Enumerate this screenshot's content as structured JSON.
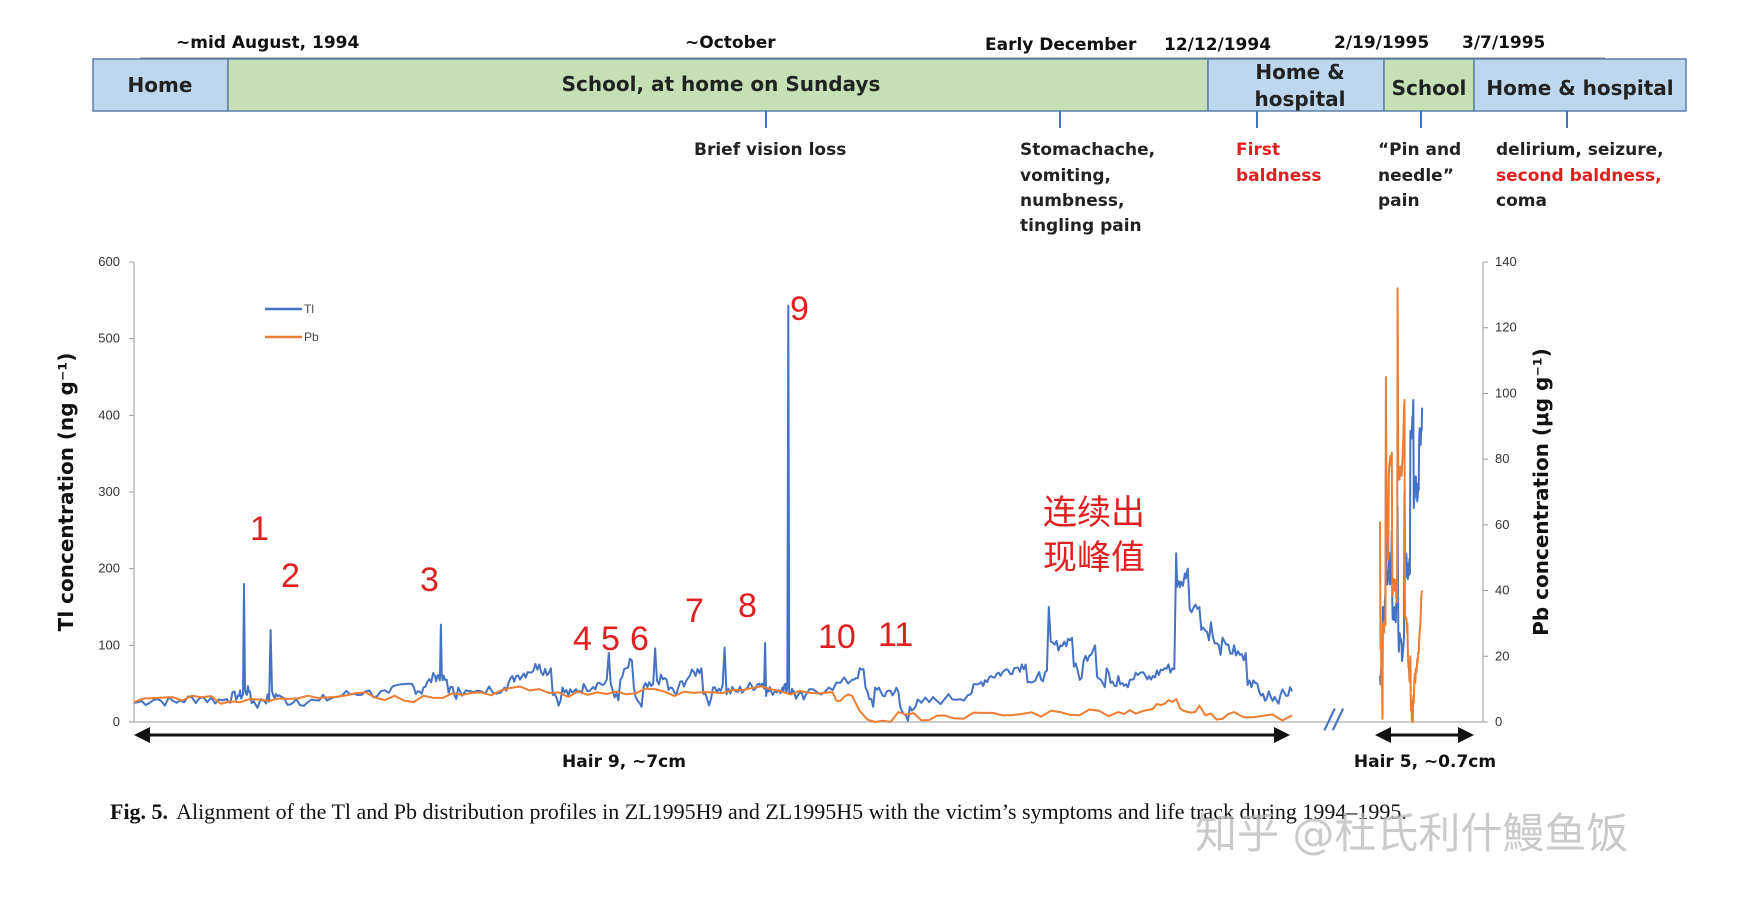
{
  "timeline": {
    "dates": [
      "~mid August, 1994",
      "~October",
      "Early December",
      "12/12/1994",
      "2/19/1995",
      "3/7/1995"
    ],
    "phases": [
      {
        "label_lines": [
          "Home"
        ],
        "color": "#bdd7ee"
      },
      {
        "label_lines": [
          "School, at home on Sundays"
        ],
        "color": "#c5e0b4"
      },
      {
        "label_lines": [
          "Home &",
          "hospital"
        ],
        "color": "#bdd7ee"
      },
      {
        "label_lines": [
          "School"
        ],
        "color": "#c5e0b4"
      },
      {
        "label_lines": [
          "Home & hospital"
        ],
        "color": "#bdd7ee"
      }
    ],
    "events": [
      {
        "lines": [
          {
            "t": "Brief vision loss",
            "red": false
          }
        ]
      },
      {
        "lines": [
          {
            "t": "Stomachache,",
            "red": false
          },
          {
            "t": "vomiting,",
            "red": false
          },
          {
            "t": "numbness,",
            "red": false
          },
          {
            "t": "tingling pain",
            "red": false
          }
        ]
      },
      {
        "lines": [
          {
            "t": "First",
            "red": true
          },
          {
            "t": "baldness",
            "red": true
          }
        ]
      },
      {
        "lines": [
          {
            "t": "“Pin and",
            "red": false
          },
          {
            "t": "needle”",
            "red": false
          },
          {
            "t": "pain",
            "red": false
          }
        ]
      },
      {
        "lines": [
          {
            "t": "delirium, seizure,",
            "red": false
          },
          {
            "t": "second baldness,",
            "red": true
          },
          {
            "t": "coma",
            "red": false
          }
        ]
      }
    ]
  },
  "chart_data": {
    "type": "line",
    "ylabel_left": "Tl concentration (ng g⁻¹)",
    "ylabel_right": "Pb concentration (μg g⁻¹)",
    "y_left_ticks": [
      "0",
      "100",
      "200",
      "300",
      "400",
      "500",
      "600"
    ],
    "y_right_ticks": [
      "0",
      "20",
      "40",
      "60",
      "80",
      "100",
      "120",
      "140"
    ],
    "ylim_left": [
      0,
      600
    ],
    "ylim_right": [
      0,
      140
    ],
    "x_units": "relative position along hair segment (0 = start of Hair 9, 1 = end of Hair 5)",
    "legend": [
      {
        "name": "Tl",
        "color": "#4472c4"
      },
      {
        "name": "Pb",
        "color": "#ed7d31"
      }
    ],
    "series": [
      {
        "name": "Tl",
        "axis": "left",
        "color": "#4472c4",
        "segments": [
          [
            [
              0.0,
              25
            ],
            [
              0.02,
              30
            ],
            [
              0.04,
              28
            ],
            [
              0.06,
              32
            ],
            [
              0.08,
              30
            ],
            [
              0.09,
              35
            ],
            [
              0.095,
              180
            ],
            [
              0.1,
              40
            ],
            [
              0.11,
              30
            ],
            [
              0.118,
              120
            ],
            [
              0.125,
              35
            ],
            [
              0.14,
              30
            ],
            [
              0.16,
              28
            ],
            [
              0.18,
              35
            ],
            [
              0.2,
              40
            ],
            [
              0.22,
              38
            ],
            [
              0.24,
              50
            ],
            [
              0.25,
              45
            ],
            [
              0.26,
              60
            ],
            [
              0.265,
              127
            ],
            [
              0.27,
              55
            ],
            [
              0.28,
              45
            ],
            [
              0.3,
              40
            ],
            [
              0.32,
              45
            ],
            [
              0.33,
              60
            ],
            [
              0.34,
              65
            ],
            [
              0.35,
              75
            ],
            [
              0.36,
              70
            ],
            [
              0.37,
              45
            ],
            [
              0.38,
              40
            ],
            [
              0.39,
              45
            ],
            [
              0.4,
              50
            ],
            [
              0.41,
              90
            ],
            [
              0.42,
              55
            ],
            [
              0.43,
              80
            ],
            [
              0.44,
              45
            ],
            [
              0.45,
              96
            ],
            [
              0.46,
              55
            ],
            [
              0.47,
              45
            ],
            [
              0.48,
              60
            ],
            [
              0.49,
              70
            ],
            [
              0.5,
              45
            ],
            [
              0.51,
              97
            ],
            [
              0.52,
              40
            ],
            [
              0.53,
              45
            ],
            [
              0.54,
              50
            ],
            [
              0.545,
              103
            ],
            [
              0.55,
              40
            ],
            [
              0.56,
              45
            ],
            [
              0.565,
              543
            ],
            [
              0.57,
              40
            ],
            [
              0.58,
              35
            ],
            [
              0.6,
              45
            ],
            [
              0.62,
              55
            ],
            [
              0.63,
              69
            ],
            [
              0.64,
              45
            ],
            [
              0.65,
              40
            ],
            [
              0.66,
              40
            ],
            [
              0.67,
              20
            ],
            [
              0.68,
              25
            ],
            [
              0.7,
              30
            ],
            [
              0.72,
              35
            ],
            [
              0.73,
              50
            ],
            [
              0.74,
              60
            ],
            [
              0.75,
              65
            ],
            [
              0.76,
              70
            ],
            [
              0.77,
              75
            ],
            [
              0.78,
              60
            ],
            [
              0.79,
              150
            ],
            [
              0.8,
              100
            ],
            [
              0.81,
              110
            ],
            [
              0.82,
              80
            ],
            [
              0.83,
              100
            ],
            [
              0.84,
              70
            ],
            [
              0.85,
              60
            ],
            [
              0.86,
              55
            ],
            [
              0.87,
              65
            ],
            [
              0.88,
              60
            ],
            [
              0.89,
              70
            ],
            [
              0.9,
              220
            ],
            [
              0.905,
              180
            ],
            [
              0.91,
              200
            ],
            [
              0.92,
              150
            ],
            [
              0.93,
              130
            ],
            [
              0.94,
              110
            ],
            [
              0.95,
              100
            ],
            [
              0.96,
              90
            ],
            [
              0.97,
              50
            ],
            [
              0.98,
              40
            ],
            [
              0.99,
              35
            ],
            [
              1.0,
              40
            ]
          ],
          [
            [
              0.0,
              60
            ],
            [
              0.03,
              150
            ],
            [
              0.06,
              330
            ],
            [
              0.09,
              200
            ],
            [
              0.12,
              250
            ],
            [
              0.15,
              150
            ],
            [
              0.18,
              280
            ],
            [
              0.22,
              100
            ],
            [
              0.25,
              300
            ],
            [
              0.28,
              200
            ],
            [
              0.31,
              380
            ],
            [
              0.34,
              420
            ],
            [
              0.37,
              300
            ],
            [
              0.4,
              370
            ],
            [
              0.43,
              410
            ]
          ]
        ]
      },
      {
        "name": "Pb",
        "axis": "right",
        "color": "#ed7d31",
        "segments": [
          [
            [
              0.0,
              6
            ],
            [
              0.05,
              8
            ],
            [
              0.1,
              7
            ],
            [
              0.15,
              8
            ],
            [
              0.2,
              9
            ],
            [
              0.25,
              8
            ],
            [
              0.3,
              9
            ],
            [
              0.35,
              10
            ],
            [
              0.4,
              9
            ],
            [
              0.45,
              10
            ],
            [
              0.5,
              9
            ],
            [
              0.55,
              10
            ],
            [
              0.6,
              9
            ],
            [
              0.62,
              8
            ],
            [
              0.66,
              3
            ],
            [
              0.7,
              2
            ],
            [
              0.75,
              2
            ],
            [
              0.8,
              3
            ],
            [
              0.85,
              3
            ],
            [
              0.88,
              4
            ],
            [
              0.9,
              7
            ],
            [
              0.92,
              5
            ],
            [
              0.95,
              3
            ],
            [
              1.0,
              2
            ]
          ],
          [
            [
              0.0,
              61
            ],
            [
              0.03,
              30
            ],
            [
              0.06,
              105
            ],
            [
              0.09,
              75
            ],
            [
              0.12,
              82
            ],
            [
              0.15,
              40
            ],
            [
              0.18,
              132
            ],
            [
              0.22,
              75
            ],
            [
              0.25,
              98
            ],
            [
              0.28,
              30
            ],
            [
              0.31,
              20
            ],
            [
              0.34,
              8
            ],
            [
              0.37,
              15
            ],
            [
              0.4,
              25
            ],
            [
              0.43,
              40
            ]
          ]
        ]
      }
    ],
    "peak_labels": [
      "1",
      "2",
      "3",
      "4",
      "5",
      "6",
      "7",
      "8",
      "9",
      "10",
      "11"
    ],
    "annotation_lines": [
      "连续出",
      "现峰值"
    ],
    "hair_labels": [
      "Hair 9, ~7cm",
      "Hair 5, ~0.7cm"
    ],
    "break_mark": "//"
  },
  "caption": {
    "fig": "Fig. 5.",
    "text": "Alignment of the Tl and Pb distribution profiles in ZL1995H9 and ZL1995H5 with the victim’s symptoms and life track during 1994–1995."
  },
  "watermark": "知乎 @杜氏利什鰻鱼饭"
}
